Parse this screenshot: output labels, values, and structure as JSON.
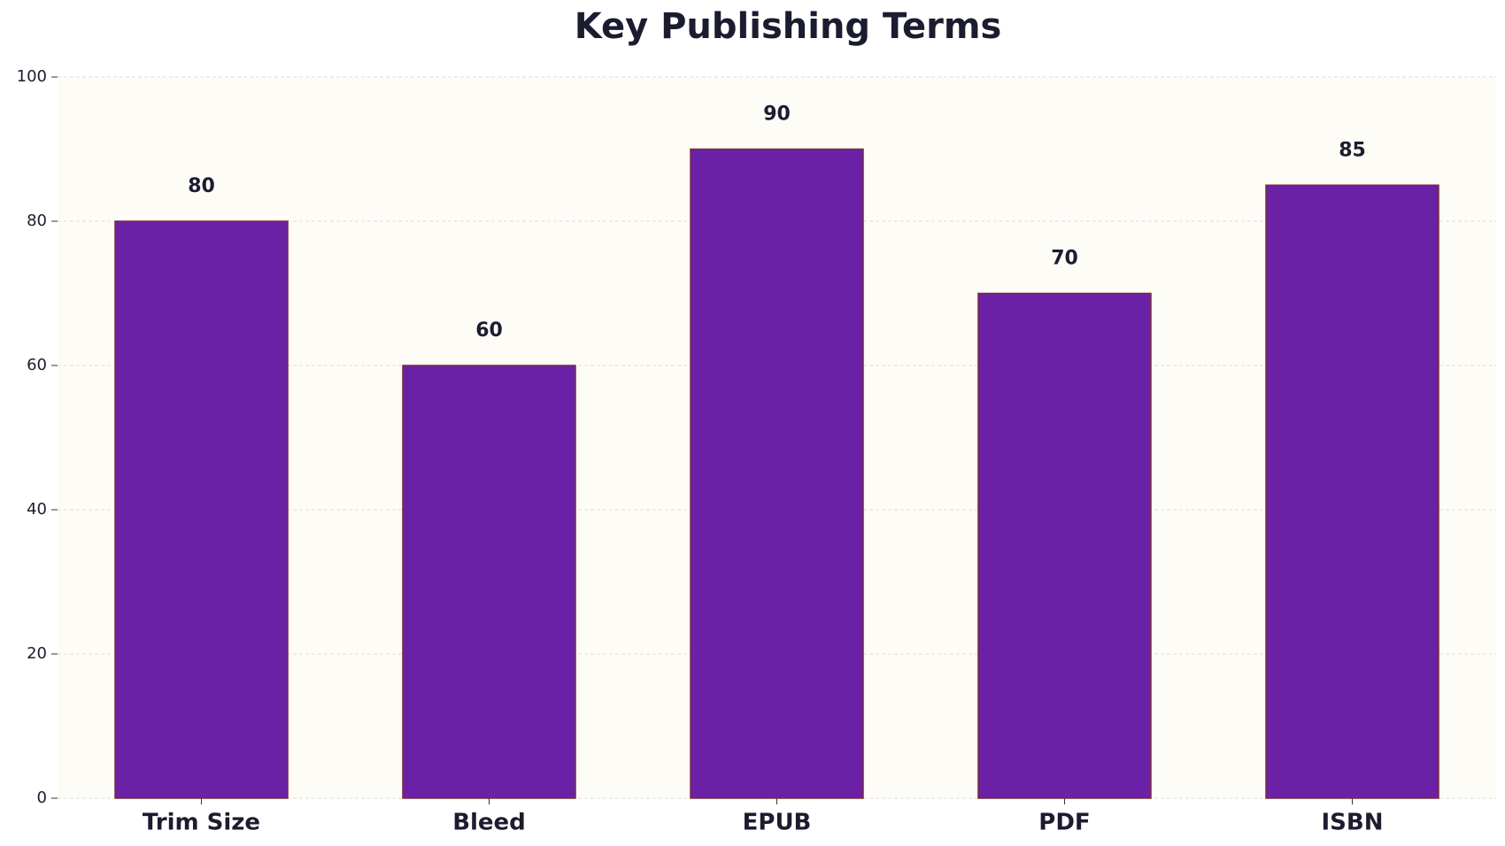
{
  "chart_data": {
    "type": "bar",
    "title": "Key Publishing Terms",
    "categories": [
      "Trim Size",
      "Bleed",
      "EPUB",
      "PDF",
      "ISBN"
    ],
    "values": [
      80,
      60,
      90,
      70,
      85
    ],
    "color": "#6a21a5",
    "edge_color": "#7a2a3c",
    "ylim": [
      0,
      100
    ],
    "yticks": [
      0,
      20,
      40,
      60,
      80,
      100
    ],
    "grid": true
  }
}
